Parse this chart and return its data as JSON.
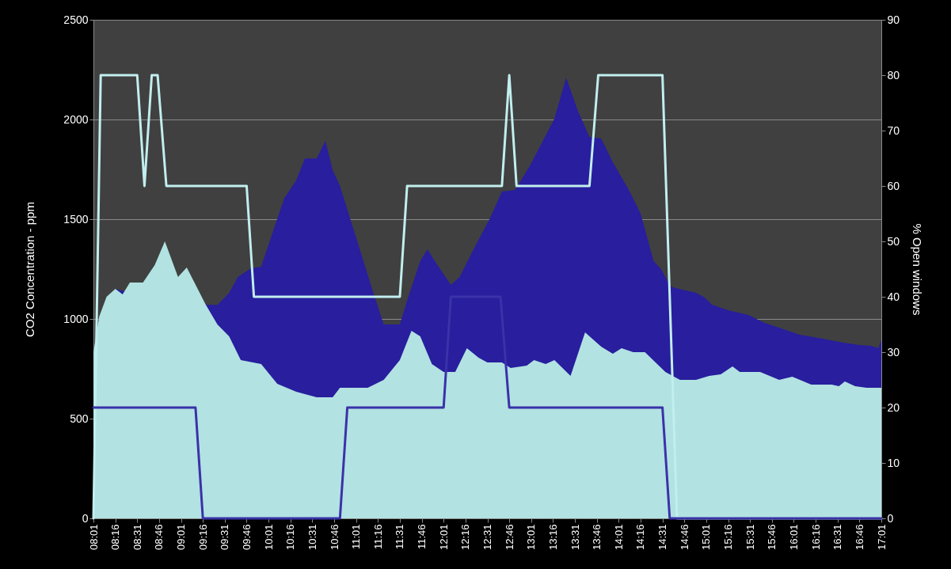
{
  "chart_data": {
    "type": "area",
    "ylabel": "CO2  Concentration - ppm",
    "y2label": "% Open windows",
    "grid": "y",
    "xlim": [
      8.017,
      17.017
    ],
    "xticks": [
      {
        "value": 8.017,
        "label": "08:01"
      },
      {
        "value": 8.267,
        "label": "08:16"
      },
      {
        "value": 8.517,
        "label": "08:31"
      },
      {
        "value": 8.767,
        "label": "08:46"
      },
      {
        "value": 9.017,
        "label": "09:01"
      },
      {
        "value": 9.267,
        "label": "09:16"
      },
      {
        "value": 9.517,
        "label": "09:31"
      },
      {
        "value": 9.767,
        "label": "09:46"
      },
      {
        "value": 10.017,
        "label": "10:01"
      },
      {
        "value": 10.267,
        "label": "10:16"
      },
      {
        "value": 10.517,
        "label": "10:31"
      },
      {
        "value": 10.767,
        "label": "10:46"
      },
      {
        "value": 11.017,
        "label": "11:01"
      },
      {
        "value": 11.267,
        "label": "11:16"
      },
      {
        "value": 11.517,
        "label": "11:31"
      },
      {
        "value": 11.767,
        "label": "11:46"
      },
      {
        "value": 12.017,
        "label": "12:01"
      },
      {
        "value": 12.267,
        "label": "12:16"
      },
      {
        "value": 12.517,
        "label": "12:31"
      },
      {
        "value": 12.767,
        "label": "12:46"
      },
      {
        "value": 13.017,
        "label": "13:01"
      },
      {
        "value": 13.267,
        "label": "13:16"
      },
      {
        "value": 13.517,
        "label": "13:31"
      },
      {
        "value": 13.767,
        "label": "13:46"
      },
      {
        "value": 14.017,
        "label": "14:01"
      },
      {
        "value": 14.267,
        "label": "14:16"
      },
      {
        "value": 14.517,
        "label": "14:31"
      },
      {
        "value": 14.767,
        "label": "14:46"
      },
      {
        "value": 15.017,
        "label": "15:01"
      },
      {
        "value": 15.267,
        "label": "15:16"
      },
      {
        "value": 15.517,
        "label": "15:31"
      },
      {
        "value": 15.767,
        "label": "15:46"
      },
      {
        "value": 16.017,
        "label": "16:01"
      },
      {
        "value": 16.267,
        "label": "16:16"
      },
      {
        "value": 16.517,
        "label": "16:31"
      },
      {
        "value": 16.767,
        "label": "16:46"
      },
      {
        "value": 17.017,
        "label": "17:01"
      }
    ],
    "ylim": [
      0,
      2500
    ],
    "yticks": [
      0,
      500,
      1000,
      1500,
      2000,
      2500
    ],
    "y2lim": [
      0,
      90
    ],
    "y2ticks": [
      0,
      10,
      20,
      30,
      40,
      50,
      60,
      70,
      80,
      90
    ],
    "series": [
      {
        "type": "area",
        "color": "#281e9e",
        "x": [
          8.267,
          8.333,
          9.3,
          9.433,
          9.567,
          9.667,
          9.817,
          9.933,
          10.167,
          10.2,
          10.333,
          10.433,
          10.567,
          10.667,
          10.75,
          10.833,
          11.017,
          11.2,
          11.333,
          11.517,
          11.6,
          11.75,
          11.833,
          11.917,
          12.1,
          12.2,
          12.383,
          12.55,
          12.683,
          12.833,
          13,
          13.283,
          13.417,
          13.55,
          13.683,
          13.817,
          13.95,
          14.133,
          14.267,
          14.417,
          14.5,
          14.6,
          14.633,
          14.9,
          15,
          15.083,
          15.267,
          15.5,
          15.683,
          15.9,
          16.083,
          16.35,
          16.533,
          16.767,
          16.9,
          16.983,
          17.017
        ],
        "values": [
          1151,
          1143,
          1071,
          1070,
          1130,
          1210,
          1254,
          1262,
          1567,
          1607,
          1694,
          1805,
          1805,
          1893,
          1746,
          1667,
          1409,
          1151,
          972,
          972,
          1091,
          1290,
          1349,
          1290,
          1171,
          1210,
          1369,
          1508,
          1639,
          1647,
          1766,
          2004,
          2210,
          2044,
          1913,
          1905,
          1786,
          1647,
          1528,
          1290,
          1250,
          1171,
          1159,
          1131,
          1107,
          1071,
          1044,
          1020,
          980,
          948,
          921,
          901,
          885,
          869,
          865,
          853,
          893
        ]
      },
      {
        "type": "area",
        "color": "#b2e2e2",
        "x": [
          8.017,
          8.083,
          8.167,
          8.267,
          8.35,
          8.433,
          8.583,
          8.717,
          8.833,
          8.983,
          9.083,
          9.3,
          9.433,
          9.567,
          9.7,
          9.933,
          10.117,
          10.333,
          10.567,
          10.75,
          10.833,
          10.967,
          11.15,
          11.333,
          11.517,
          11.65,
          11.75,
          11.883,
          12.017,
          12.15,
          12.283,
          12.417,
          12.517,
          12.683,
          12.783,
          12.967,
          13.05,
          13.183,
          13.283,
          13.467,
          13.633,
          13.817,
          13.95,
          14.05,
          14.183,
          14.317,
          14.55,
          14.717,
          14.9,
          15.05,
          15.183,
          15.317,
          15.4,
          15.633,
          15.85,
          16,
          16.217,
          16.45,
          16.533,
          16.6,
          16.717,
          16.85,
          17.017
        ],
        "values": [
          833,
          1012,
          1111,
          1151,
          1123,
          1183,
          1183,
          1270,
          1389,
          1210,
          1258,
          1071,
          972,
          913,
          794,
          774,
          675,
          635,
          607,
          607,
          655,
          655,
          655,
          694,
          794,
          940,
          913,
          774,
          734,
          734,
          853,
          806,
          782,
          782,
          754,
          766,
          794,
          774,
          794,
          714,
          933,
          861,
          825,
          853,
          833,
          833,
          734,
          694,
          694,
          714,
          722,
          762,
          734,
          734,
          694,
          710,
          671,
          671,
          663,
          687,
          663,
          655,
          655
        ]
      },
      {
        "type": "line",
        "axis": "y2",
        "color": "#c2eeee",
        "x": [
          8.017,
          8.1,
          8.517,
          8.6,
          8.683,
          8.75,
          8.85,
          9.767,
          9.85,
          11.517,
          11.6,
          12.683,
          12.767,
          12.85,
          13.683,
          13.783,
          14.517,
          14.683,
          17.017
        ],
        "values": [
          0,
          80,
          80,
          60,
          80,
          80,
          60,
          60,
          40,
          40,
          60,
          60,
          80,
          60,
          60,
          80,
          80,
          0,
          0
        ]
      },
      {
        "type": "line",
        "axis": "y2",
        "color": "#3a32a8",
        "x": [
          8.017,
          9.183,
          9.267,
          10.833,
          10.917,
          12.017,
          12.1,
          12.667,
          12.767,
          14.517,
          14.6,
          17.017
        ],
        "values": [
          20,
          20,
          0,
          0,
          20,
          20,
          40,
          40,
          20,
          20,
          0,
          0
        ]
      }
    ]
  }
}
